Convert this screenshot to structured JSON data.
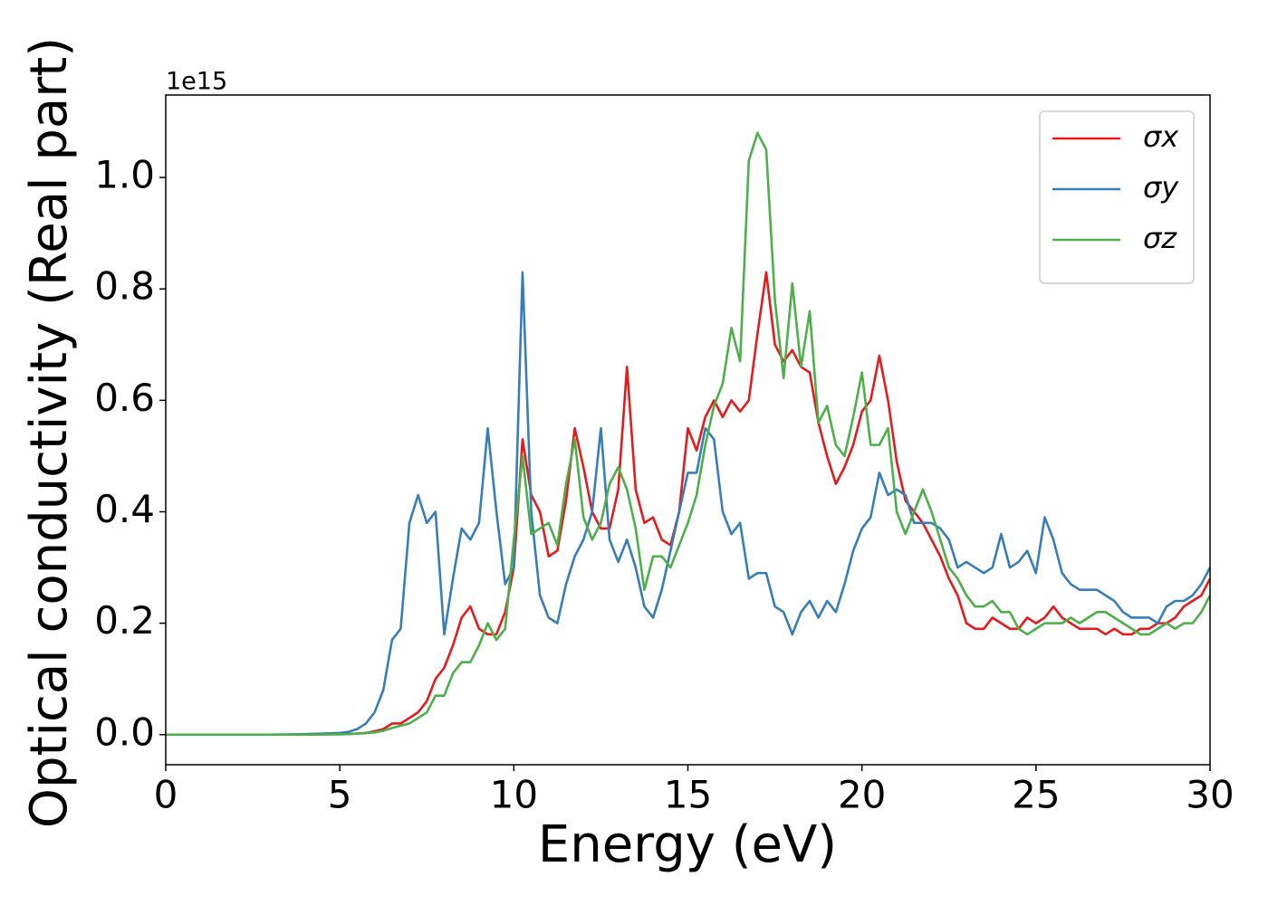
{
  "chart_data": {
    "type": "line",
    "x_label": "Energy (eV)",
    "y_label": "Optical conductivity (Real part)",
    "y_offset_label": "1e15",
    "xlim": [
      0,
      30
    ],
    "ylim": [
      -0.054,
      1.148
    ],
    "xticks": [
      0,
      5,
      10,
      15,
      20,
      25,
      30
    ],
    "yticks": [
      {
        "value": 0,
        "label": "0.0"
      },
      0.2,
      0.4,
      0.6,
      0.8,
      {
        "value": 1,
        "label": "1.0"
      }
    ],
    "grid": false,
    "legend": "upper right",
    "x": [
      0,
      1,
      2,
      3,
      4,
      5,
      5.25,
      5.5,
      5.75,
      6,
      6.25,
      6.5,
      6.75,
      7,
      7.25,
      7.5,
      7.75,
      8,
      8.25,
      8.5,
      8.75,
      9,
      9.25,
      9.5,
      9.75,
      10,
      10.25,
      10.5,
      10.75,
      11,
      11.25,
      11.5,
      11.75,
      12,
      12.25,
      12.5,
      12.75,
      13,
      13.25,
      13.5,
      13.75,
      14,
      14.25,
      14.5,
      14.75,
      15,
      15.25,
      15.5,
      15.75,
      16,
      16.25,
      16.5,
      16.75,
      17,
      17.25,
      17.5,
      17.75,
      18,
      18.25,
      18.5,
      18.75,
      19,
      19.25,
      19.5,
      19.75,
      20,
      20.25,
      20.5,
      20.75,
      21,
      21.25,
      21.5,
      21.75,
      22,
      22.25,
      22.5,
      22.75,
      23,
      23.25,
      23.5,
      23.75,
      24,
      24.25,
      24.5,
      24.75,
      25,
      25.25,
      25.5,
      25.75,
      26,
      26.25,
      26.5,
      26.75,
      27,
      27.25,
      27.5,
      27.75,
      28,
      28.25,
      28.5,
      28.75,
      29,
      29.25,
      29.5,
      29.75,
      30
    ],
    "series": [
      {
        "name": "σx",
        "color": "#e41a1c",
        "values": [
          0,
          0,
          0,
          0,
          0,
          0.001,
          0.001,
          0.002,
          0.003,
          0.006,
          0.01,
          0.02,
          0.02,
          0.03,
          0.04,
          0.06,
          0.1,
          0.12,
          0.16,
          0.21,
          0.23,
          0.19,
          0.18,
          0.18,
          0.22,
          0.3,
          0.53,
          0.43,
          0.4,
          0.32,
          0.33,
          0.42,
          0.55,
          0.48,
          0.4,
          0.37,
          0.37,
          0.44,
          0.66,
          0.44,
          0.38,
          0.39,
          0.35,
          0.34,
          0.4,
          0.55,
          0.51,
          0.57,
          0.6,
          0.57,
          0.6,
          0.58,
          0.6,
          0.72,
          0.83,
          0.7,
          0.67,
          0.69,
          0.66,
          0.65,
          0.56,
          0.5,
          0.45,
          0.48,
          0.52,
          0.58,
          0.6,
          0.68,
          0.6,
          0.49,
          0.42,
          0.4,
          0.38,
          0.35,
          0.32,
          0.28,
          0.25,
          0.2,
          0.19,
          0.19,
          0.21,
          0.2,
          0.19,
          0.19,
          0.21,
          0.2,
          0.21,
          0.23,
          0.21,
          0.2,
          0.19,
          0.19,
          0.19,
          0.18,
          0.19,
          0.18,
          0.18,
          0.19,
          0.19,
          0.2,
          0.2,
          0.21,
          0.23,
          0.24,
          0.25,
          0.28
        ]
      },
      {
        "name": "σy",
        "color": "#377eb8",
        "values": [
          0,
          0,
          0,
          0,
          0.001,
          0.003,
          0.005,
          0.01,
          0.02,
          0.04,
          0.08,
          0.17,
          0.19,
          0.38,
          0.43,
          0.38,
          0.4,
          0.18,
          0.28,
          0.37,
          0.35,
          0.38,
          0.55,
          0.4,
          0.27,
          0.3,
          0.83,
          0.4,
          0.25,
          0.21,
          0.2,
          0.27,
          0.32,
          0.35,
          0.4,
          0.55,
          0.35,
          0.31,
          0.35,
          0.3,
          0.23,
          0.21,
          0.26,
          0.33,
          0.4,
          0.47,
          0.47,
          0.55,
          0.53,
          0.4,
          0.36,
          0.38,
          0.28,
          0.29,
          0.29,
          0.23,
          0.22,
          0.18,
          0.22,
          0.24,
          0.21,
          0.24,
          0.22,
          0.27,
          0.33,
          0.37,
          0.39,
          0.47,
          0.43,
          0.44,
          0.43,
          0.38,
          0.38,
          0.38,
          0.37,
          0.35,
          0.3,
          0.31,
          0.3,
          0.29,
          0.3,
          0.36,
          0.3,
          0.31,
          0.33,
          0.29,
          0.39,
          0.35,
          0.29,
          0.27,
          0.26,
          0.26,
          0.26,
          0.25,
          0.24,
          0.22,
          0.21,
          0.21,
          0.21,
          0.2,
          0.23,
          0.24,
          0.24,
          0.25,
          0.27,
          0.3
        ]
      },
      {
        "name": "σz",
        "color": "#4daf4a",
        "values": [
          0,
          0,
          0,
          0,
          0,
          0.0005,
          0.001,
          0.002,
          0.003,
          0.004,
          0.007,
          0.012,
          0.016,
          0.02,
          0.03,
          0.04,
          0.07,
          0.07,
          0.11,
          0.13,
          0.13,
          0.16,
          0.2,
          0.17,
          0.19,
          0.35,
          0.5,
          0.36,
          0.37,
          0.38,
          0.34,
          0.45,
          0.53,
          0.39,
          0.35,
          0.38,
          0.45,
          0.48,
          0.44,
          0.37,
          0.26,
          0.32,
          0.32,
          0.3,
          0.34,
          0.38,
          0.43,
          0.52,
          0.59,
          0.63,
          0.73,
          0.67,
          1.03,
          1.08,
          1.05,
          0.78,
          0.64,
          0.81,
          0.66,
          0.76,
          0.56,
          0.59,
          0.52,
          0.5,
          0.57,
          0.65,
          0.52,
          0.52,
          0.55,
          0.4,
          0.36,
          0.4,
          0.44,
          0.4,
          0.35,
          0.3,
          0.28,
          0.25,
          0.23,
          0.23,
          0.24,
          0.22,
          0.22,
          0.19,
          0.18,
          0.19,
          0.2,
          0.2,
          0.2,
          0.21,
          0.2,
          0.21,
          0.22,
          0.22,
          0.21,
          0.2,
          0.19,
          0.18,
          0.18,
          0.19,
          0.2,
          0.19,
          0.2,
          0.2,
          0.22,
          0.25
        ]
      }
    ]
  }
}
